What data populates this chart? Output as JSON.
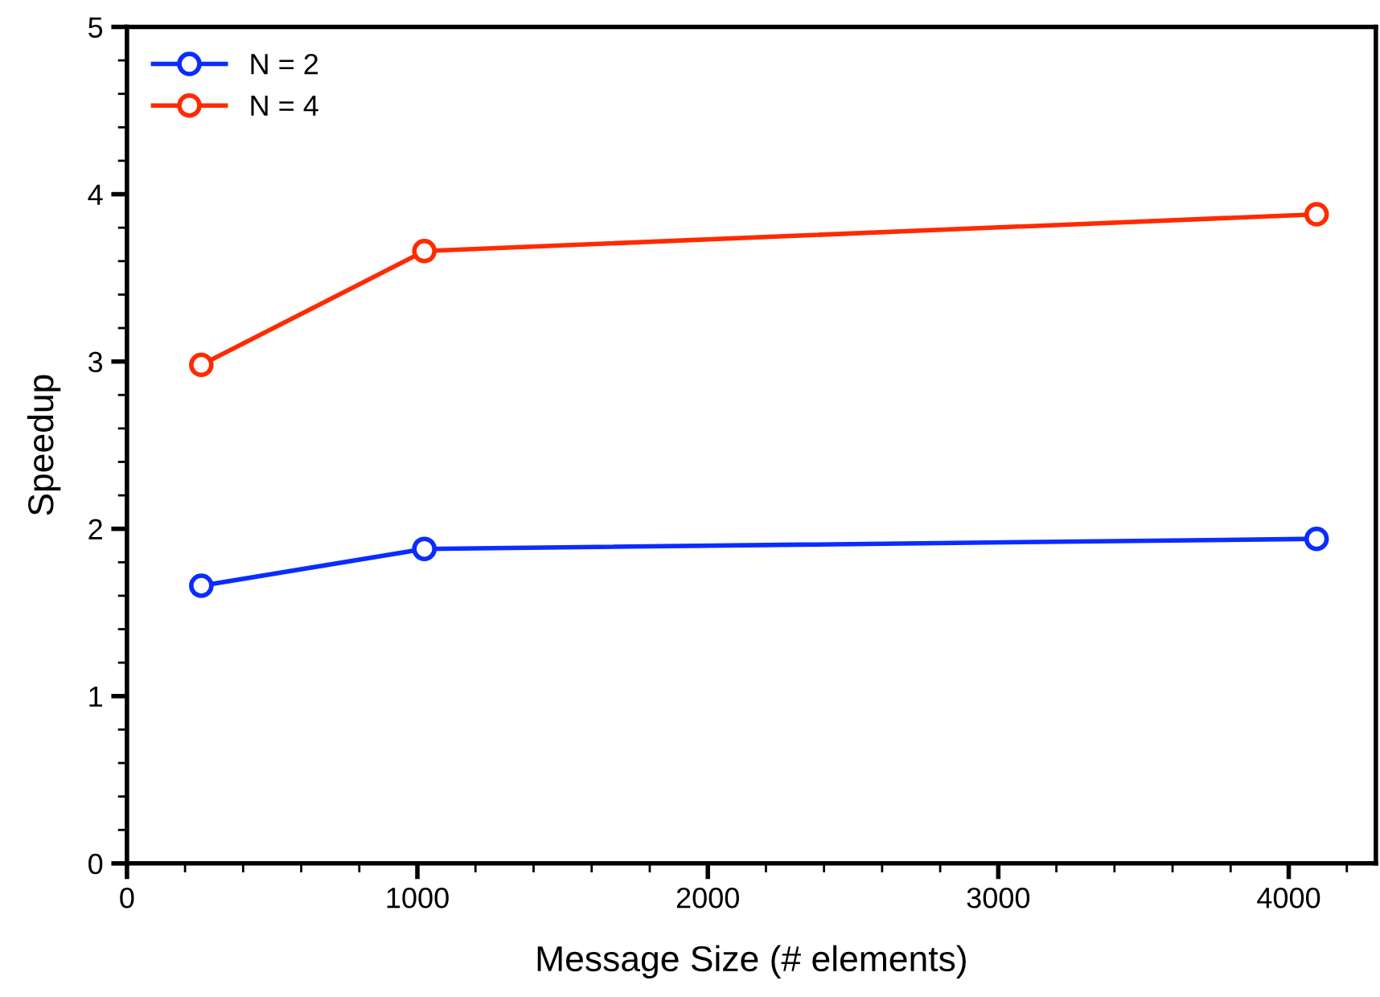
{
  "chart_data": {
    "type": "line",
    "xlabel": "Message Size (# elements)",
    "ylabel": "Speedup",
    "x": [
      256,
      1024,
      4096
    ],
    "series": [
      {
        "name": "N = 2",
        "color": "#0a2cff",
        "values": [
          1.66,
          1.88,
          1.94
        ]
      },
      {
        "name": "N = 4",
        "color": "#ff2a00",
        "values": [
          2.98,
          3.66,
          3.88
        ]
      }
    ],
    "xlim": [
      0,
      4300
    ],
    "xticks": [
      0,
      1000,
      2000,
      3000,
      4000
    ],
    "ylim": [
      0,
      5
    ],
    "yticks": [
      0,
      1,
      2,
      3,
      4,
      5
    ],
    "marker": "circle",
    "line_style": "solid",
    "legend": "top left",
    "grid": false
  }
}
